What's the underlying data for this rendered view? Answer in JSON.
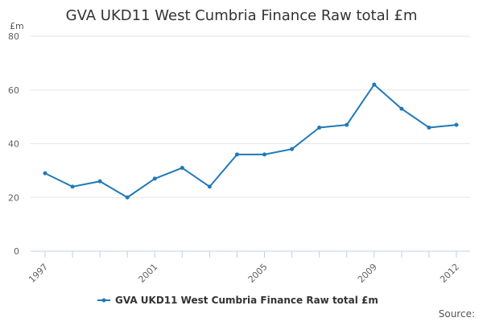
{
  "colors": {
    "series": "#1f7ab8",
    "grid": "#e6e6e6",
    "axis": "#c0d0e0"
  },
  "chart_data": {
    "type": "line",
    "title": "GVA UKD11 West Cumbria Finance Raw total £m",
    "ylabel": "£m",
    "xlabel": "",
    "ylim": [
      0,
      80
    ],
    "yticks": [
      0,
      20,
      40,
      60,
      80
    ],
    "xlim": [
      1997,
      2012
    ],
    "xtick_labels": [
      "1997",
      "2001",
      "2005",
      "2009",
      "2012"
    ],
    "grid": true,
    "legend_position": "bottom-center",
    "series": [
      {
        "name": "GVA UKD11 West Cumbria Finance Raw total £m",
        "x": [
          1997,
          1998,
          1999,
          2000,
          2001,
          2002,
          2003,
          2004,
          2005,
          2006,
          2007,
          2008,
          2009,
          2010,
          2011,
          2012
        ],
        "values": [
          29,
          24,
          26,
          20,
          27,
          31,
          24,
          36,
          36,
          38,
          46,
          47,
          62,
          53,
          46,
          47
        ]
      }
    ]
  },
  "source_label": "Source:"
}
